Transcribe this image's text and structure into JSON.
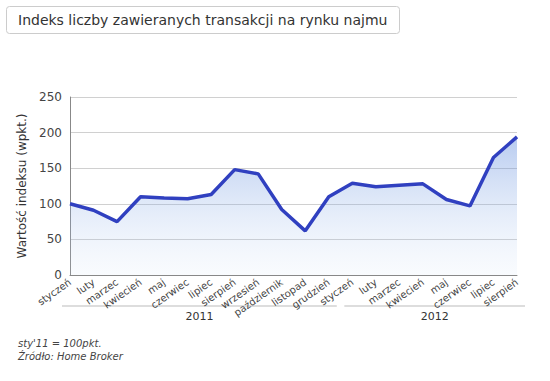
{
  "chart_data": {
    "type": "line",
    "title": "Indeks liczby zawieranych transakcji na rynku najmu",
    "y_label": "Wartość indeksu (wpkt.)",
    "categories": [
      "styczeń",
      "luty",
      "marzec",
      "kwiecień",
      "maj",
      "czerwiec",
      "lipiec",
      "sierpień",
      "wrzesień",
      "październik",
      "listopad",
      "grudzień",
      "styczeń",
      "luty",
      "marzec",
      "kwiecień",
      "maj",
      "czerwiec",
      "lipiec",
      "sierpień"
    ],
    "values": [
      100,
      91,
      75,
      110,
      108,
      107,
      113,
      148,
      142,
      92,
      62,
      110,
      129,
      124,
      126,
      128,
      106,
      97,
      165,
      194
    ],
    "year_groups": [
      {
        "label": "2011",
        "count": 12
      },
      {
        "label": "2012",
        "count": 8
      }
    ],
    "notes": [
      "sty'11 = 100pkt.",
      "Źródło: Home Broker"
    ],
    "color": "#3040c0",
    "marker": "none",
    "ylim": [
      0,
      250
    ],
    "yticks": [
      0,
      50,
      100,
      150,
      200,
      250
    ],
    "grid": true
  }
}
